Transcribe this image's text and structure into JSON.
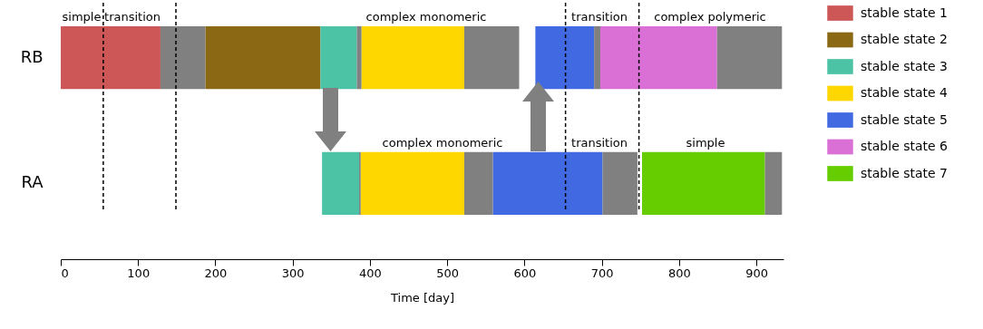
{
  "chart_data": {
    "type": "bar",
    "orientation": "horizontal",
    "xlabel": "Time [day]",
    "categories": [
      "RB",
      "RA"
    ],
    "xlim": [
      0,
      935
    ],
    "xticks": [
      0,
      100,
      200,
      300,
      400,
      500,
      600,
      700,
      800,
      900
    ],
    "grid": false,
    "legend": "right",
    "series": [
      {
        "name": "stable state 1",
        "color": "#cd5656",
        "base": [
          0,
          null
        ],
        "values": [
          129,
          null
        ]
      },
      {
        "name": "stable state 2",
        "color": "#8b6914",
        "base": [
          187,
          null
        ],
        "values": [
          149,
          null
        ]
      },
      {
        "name": "stable state 3",
        "color": "#4cc3a5",
        "base": [
          336,
          338
        ],
        "values": [
          47,
          48
        ]
      },
      {
        "name": "stable state 4",
        "color": "#ffd700",
        "base": [
          389,
          388
        ],
        "values": [
          133,
          134
        ]
      },
      {
        "name": "stable state 5",
        "color": "#4169e1",
        "base": [
          614,
          559
        ],
        "values": [
          76,
          142
        ]
      },
      {
        "name": "stable state 6",
        "color": "#da70d6",
        "base": [
          698,
          null
        ],
        "values": [
          151,
          null
        ]
      },
      {
        "name": "stable state 7",
        "color": "#66cd00",
        "base": [
          null,
          752
        ],
        "values": [
          null,
          159
        ]
      },
      {
        "color": "#808080",
        "base": [
          129,
          386
        ],
        "values": [
          58,
          2
        ]
      },
      {
        "color": "#808080",
        "base": [
          383,
          522
        ],
        "values": [
          6,
          37
        ]
      },
      {
        "color": "#808080",
        "base": [
          522,
          701
        ],
        "values": [
          71,
          45
        ]
      },
      {
        "color": "#808080",
        "base": [
          690,
          911
        ],
        "values": [
          8,
          22
        ]
      },
      {
        "color": "#808080",
        "base": [
          849,
          null
        ],
        "values": [
          84,
          null
        ]
      }
    ],
    "ref_lines": [
      {
        "axis": "x",
        "value": 55,
        "line_style": "dashed",
        "color": "#000000"
      },
      {
        "axis": "x",
        "value": 149,
        "line_style": "dashed",
        "color": "#000000"
      },
      {
        "axis": "x",
        "value": 653,
        "line_style": "dashed",
        "color": "#000000"
      },
      {
        "axis": "x",
        "value": 748,
        "line_style": "dashed",
        "color": "#000000"
      }
    ],
    "annotations": [
      "simple",
      "transition",
      "complex monomeric",
      "transition",
      "complex polymeric",
      "complex monomeric",
      "transition",
      "simple"
    ]
  }
}
